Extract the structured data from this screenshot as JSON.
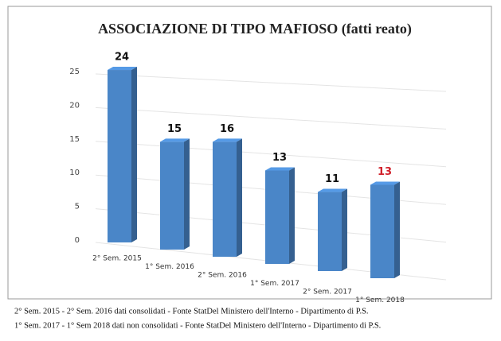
{
  "chart_data": {
    "type": "bar3d",
    "title": "ASSOCIAZIONE DI TIPO MAFIOSO  (fatti reato)",
    "categories": [
      "2° Sem. 2015",
      "1° Sem. 2016",
      "2° Sem. 2016",
      "1° Sem. 2017",
      "2° Sem. 2017",
      "1° Sem. 2018"
    ],
    "values": [
      24,
      15,
      16,
      13,
      11,
      13
    ],
    "color": "#4a86c8",
    "value_label_colors": [
      "#111111",
      "#111111",
      "#111111",
      "#111111",
      "#111111",
      "#d0202a"
    ],
    "ylim": [
      0,
      25
    ],
    "yticks": [
      0,
      5,
      10,
      15,
      20,
      25
    ],
    "grid": true,
    "notes": [
      "2° Sem. 2015 - 2° Sem. 2016 dati consolidati - Fonte StatDel Ministero dell'Interno - Dipartimento di P.S.",
      "1° Sem. 2017 - 1° Sem 2018 dati non consolidati - Fonte StatDel Ministero dell'Interno - Dipartimento di P.S."
    ]
  }
}
